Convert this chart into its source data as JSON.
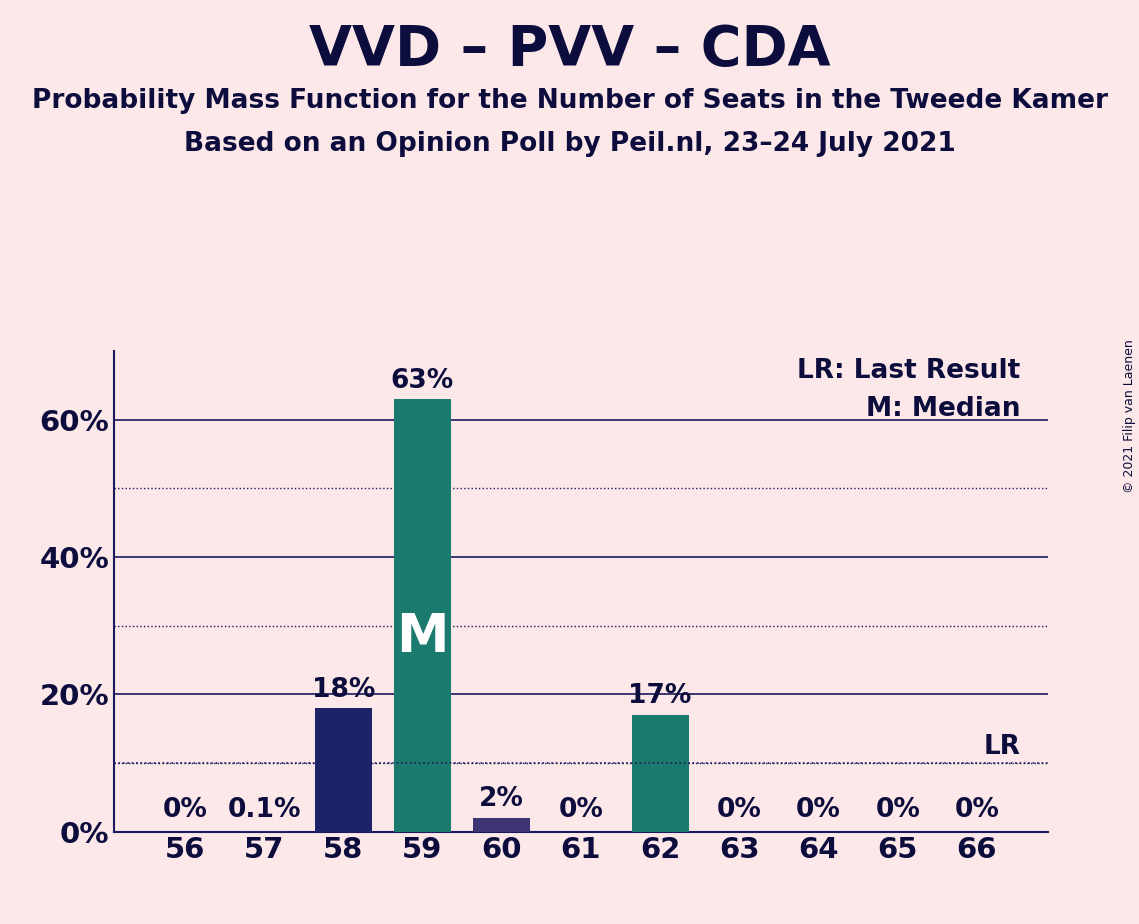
{
  "title": "VVD – PVV – CDA",
  "subtitle1": "Probability Mass Function for the Number of Seats in the Tweede Kamer",
  "subtitle2": "Based on an Opinion Poll by Peil.nl, 23–24 July 2021",
  "copyright": "© 2021 Filip van Laenen",
  "categories": [
    56,
    57,
    58,
    59,
    60,
    61,
    62,
    63,
    64,
    65,
    66
  ],
  "values": [
    0.0,
    0.1,
    18.0,
    63.0,
    2.0,
    0.0,
    17.0,
    0.0,
    0.0,
    0.0,
    0.0
  ],
  "labels": [
    "0%",
    "0.1%",
    "18%",
    "63%",
    "2%",
    "0%",
    "17%",
    "0%",
    "0%",
    "0%",
    "0%"
  ],
  "median_bar_idx": 3,
  "lr_line": 10.0,
  "lr_label": "LR",
  "legend_lr": "LR: Last Result",
  "legend_m": "M: Median",
  "background_color": "#fce8e8",
  "bar_color_dark_navy": "#1c2366",
  "bar_color_teal": "#1a7a6e",
  "bar_color_purple": "#3d3573",
  "ylim": [
    0,
    70
  ],
  "yticks_solid": [
    20,
    40,
    60
  ],
  "yticks_dotted": [
    10,
    30,
    50
  ],
  "title_fontsize": 40,
  "subtitle_fontsize": 19,
  "tick_fontsize": 21,
  "label_fontsize": 19,
  "copyright_fontsize": 9,
  "m_fontsize": 38,
  "axis_color": "#1a1a5e",
  "text_color": "#0d0d3d"
}
